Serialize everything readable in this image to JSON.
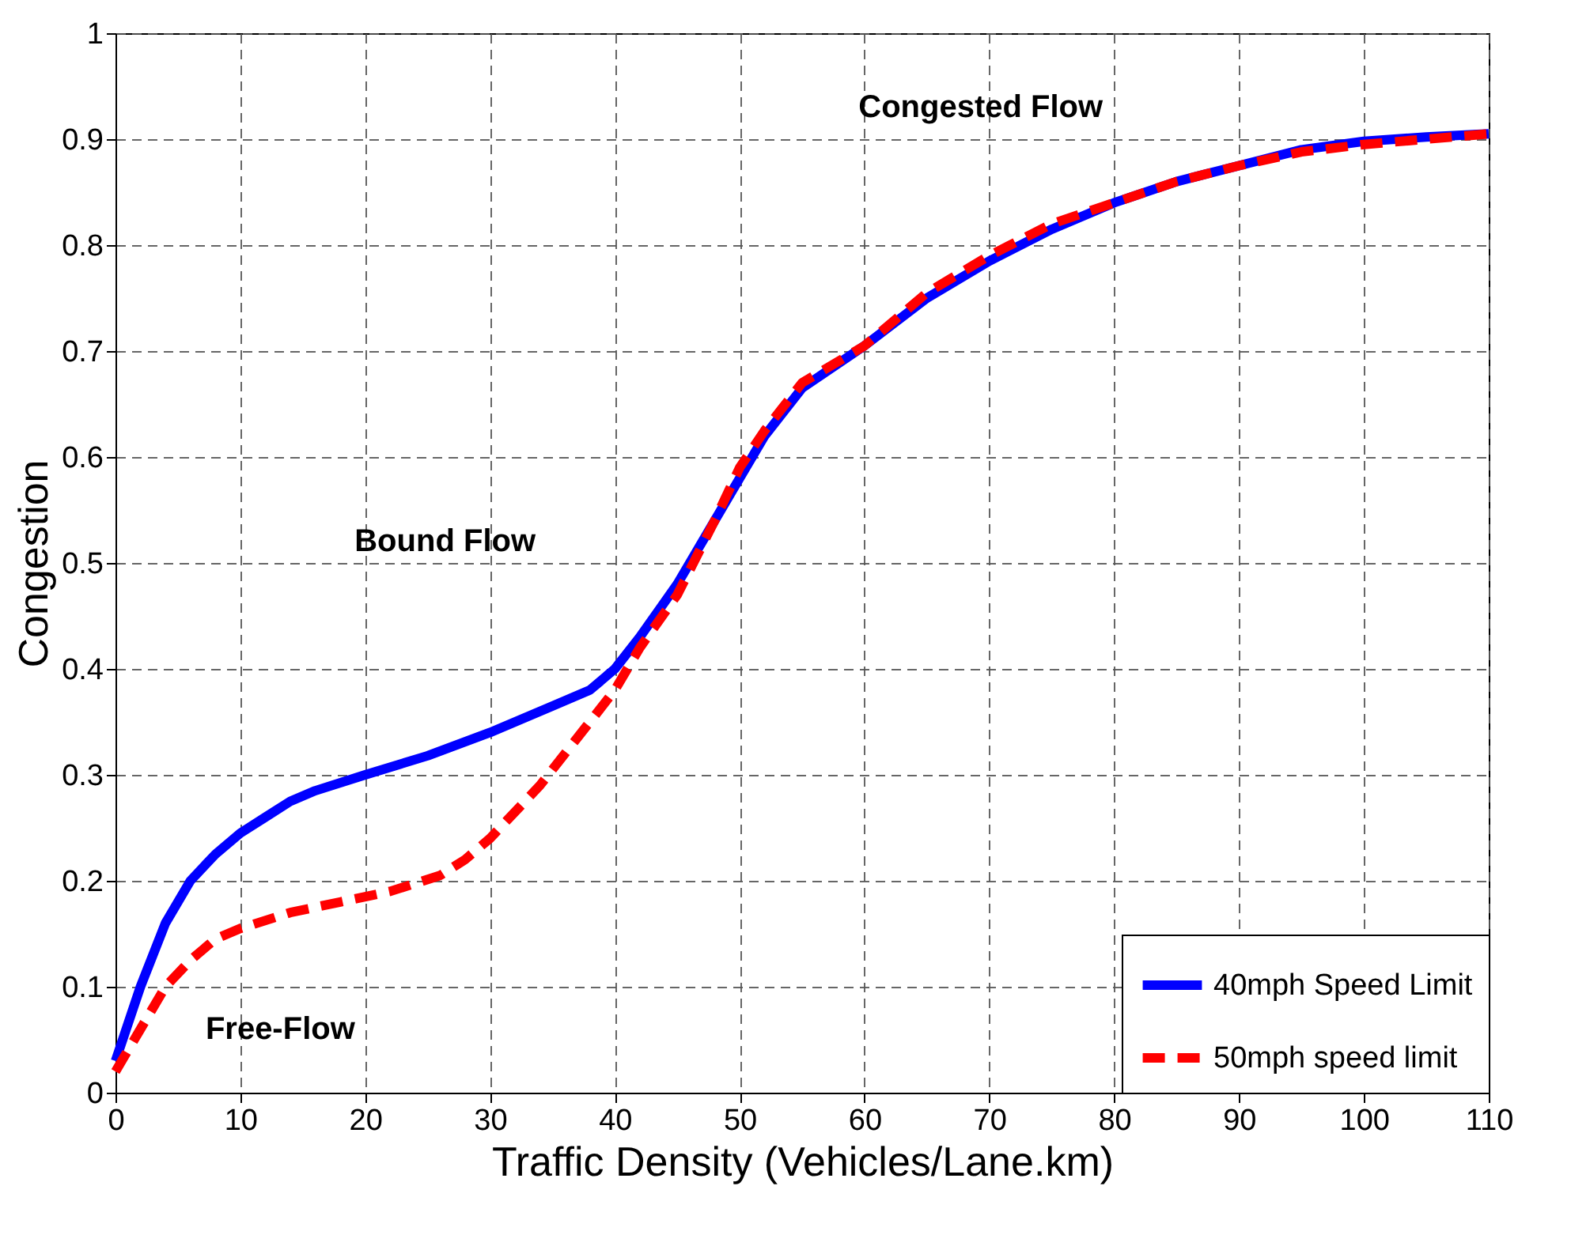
{
  "chart_data": {
    "type": "line",
    "xlabel": "Traffic Density (Vehicles/Lane.km)",
    "ylabel": "Congestion",
    "xlim": [
      0,
      110
    ],
    "xticks": [
      0,
      10,
      20,
      30,
      40,
      50,
      60,
      70,
      80,
      90,
      100,
      110
    ],
    "ylim": [
      0,
      1
    ],
    "yticks": [
      0,
      0.1,
      0.2,
      0.3,
      0.4,
      0.5,
      0.6,
      0.7,
      0.8,
      0.9,
      1
    ],
    "grid": true,
    "legend": "bottom right",
    "marker": "none",
    "annotations": [
      "Congested Flow",
      "Bound Flow",
      "Free-Flow"
    ],
    "series": [
      {
        "name": "40mph Speed Limit",
        "color": "#0000ff",
        "line_style": "solid",
        "x": [
          0,
          2,
          4,
          6,
          8,
          10,
          12,
          14,
          16,
          20,
          25,
          30,
          35,
          38,
          40,
          42,
          45,
          48,
          50,
          52,
          55,
          60,
          65,
          70,
          75,
          80,
          85,
          90,
          95,
          100,
          105,
          110
        ],
        "values": [
          0.03,
          0.1,
          0.16,
          0.2,
          0.225,
          0.245,
          0.26,
          0.275,
          0.285,
          0.3,
          0.318,
          0.34,
          0.365,
          0.38,
          0.4,
          0.43,
          0.48,
          0.54,
          0.58,
          0.62,
          0.665,
          0.705,
          0.75,
          0.785,
          0.815,
          0.84,
          0.86,
          0.875,
          0.89,
          0.898,
          0.902,
          0.905
        ]
      },
      {
        "name": "50mph speed limit",
        "color": "#ff0000",
        "line_style": "dashed",
        "x": [
          0,
          2,
          4,
          6,
          8,
          10,
          14,
          18,
          22,
          26,
          28,
          30,
          34,
          38,
          40,
          42,
          45,
          48,
          50,
          52,
          55,
          60,
          65,
          70,
          75,
          80,
          85,
          90,
          95,
          100,
          105,
          110
        ],
        "values": [
          0.02,
          0.06,
          0.1,
          0.125,
          0.145,
          0.155,
          0.17,
          0.18,
          0.19,
          0.205,
          0.22,
          0.24,
          0.29,
          0.35,
          0.38,
          0.42,
          0.47,
          0.54,
          0.59,
          0.625,
          0.67,
          0.705,
          0.755,
          0.79,
          0.82,
          0.84,
          0.86,
          0.875,
          0.888,
          0.895,
          0.9,
          0.905
        ]
      }
    ]
  }
}
